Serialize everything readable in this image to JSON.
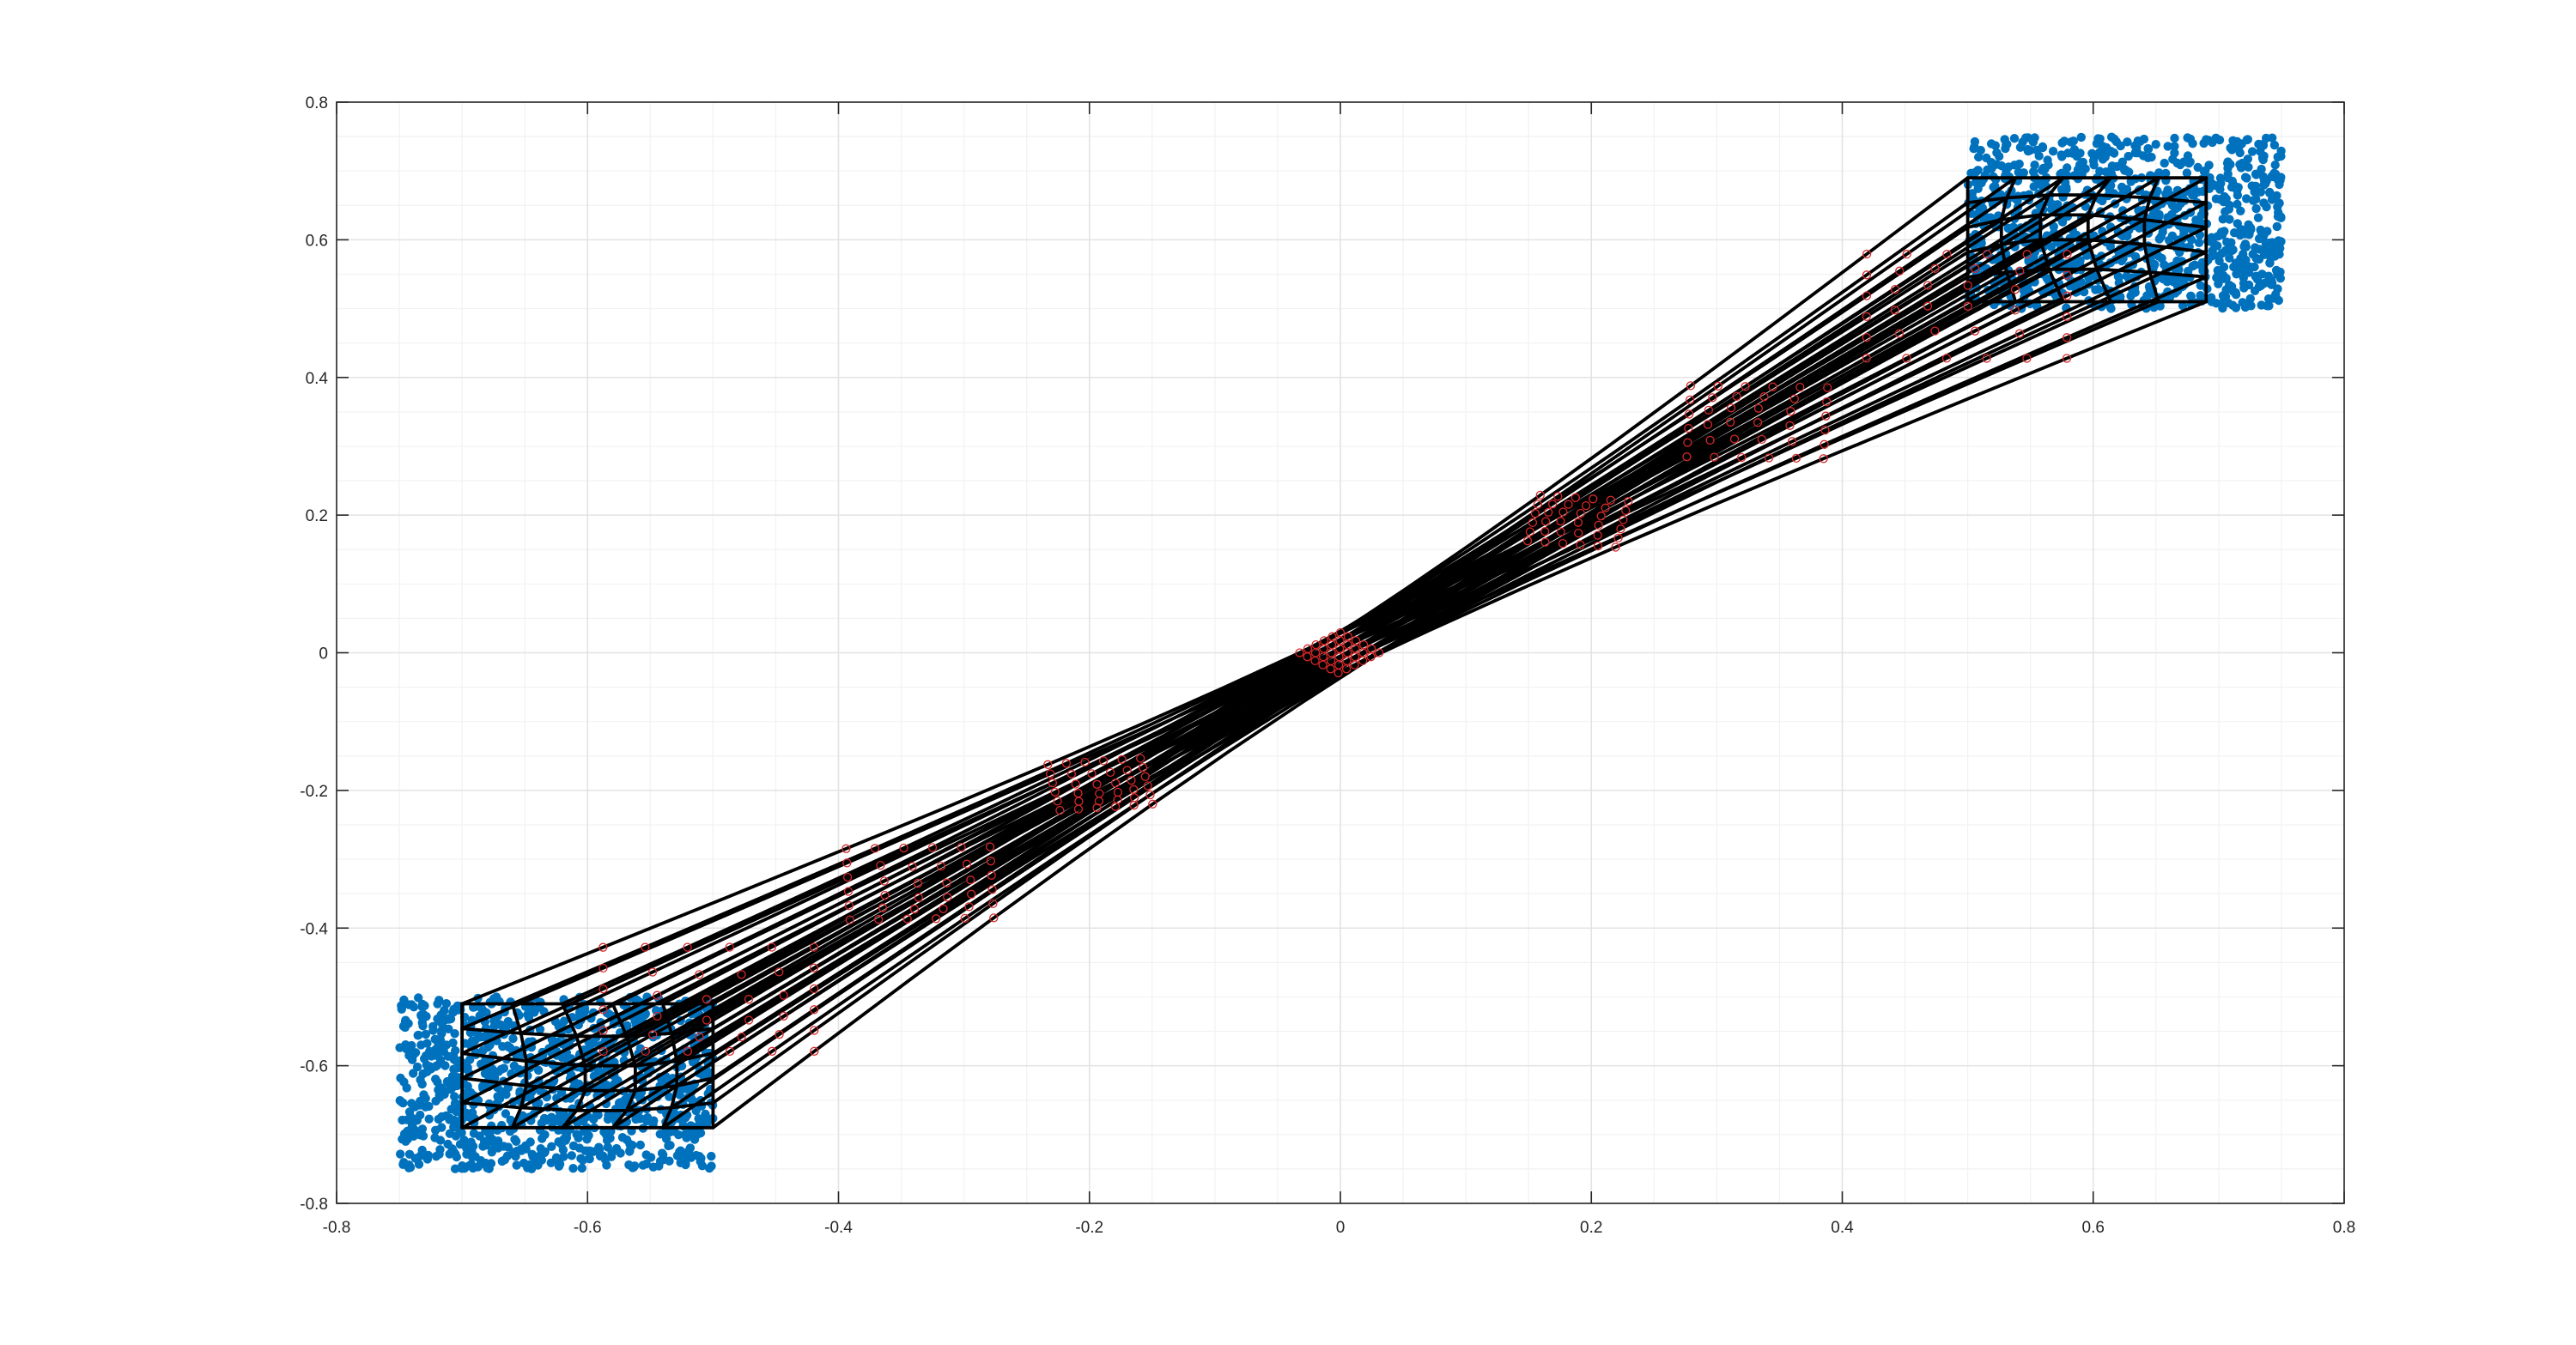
{
  "chart_data": {
    "type": "scatter",
    "title": "",
    "xlabel": "",
    "ylabel": "",
    "xlim": [
      -0.8,
      0.8
    ],
    "ylim": [
      -0.8,
      0.8
    ],
    "xticks": [
      -0.8,
      -0.6,
      -0.4,
      -0.2,
      0,
      0.2,
      0.4,
      0.6,
      0.8
    ],
    "yticks": [
      -0.8,
      -0.6,
      -0.4,
      -0.2,
      0,
      0.2,
      0.4,
      0.6,
      0.8
    ],
    "xtick_labels": [
      "-0.8",
      "-0.6",
      "-0.4",
      "-0.2",
      "0",
      "0.2",
      "0.4",
      "0.6",
      "0.8"
    ],
    "ytick_labels": [
      "-0.8",
      "-0.6",
      "-0.4",
      "-0.2",
      "0",
      "0.2",
      "0.4",
      "0.6",
      "0.8"
    ],
    "grid": true,
    "minor_grid": true,
    "legend": "none",
    "series": [
      {
        "kind": "scatter-points",
        "color": "#0072BD",
        "x_range": [
          0.5,
          0.75
        ],
        "y_range": [
          0.5,
          0.75
        ],
        "approx_count": 1000,
        "description": "uniform point cloud"
      },
      {
        "kind": "scatter-points",
        "color": "#0072BD",
        "x_range": [
          -0.75,
          -0.5
        ],
        "y_range": [
          -0.75,
          -0.5
        ],
        "approx_count": 1000,
        "description": "uniform point cloud"
      },
      {
        "kind": "lines",
        "color": "#000000",
        "marker_color": "#d62728",
        "start_x_range": [
          -0.7,
          -0.5
        ],
        "start_y_range": [
          -0.69,
          -0.51
        ],
        "end_x_range": [
          0.5,
          0.69
        ],
        "end_y_range": [
          0.51,
          0.69
        ],
        "through": [
          0,
          0
        ],
        "grid": 6
      }
    ]
  }
}
